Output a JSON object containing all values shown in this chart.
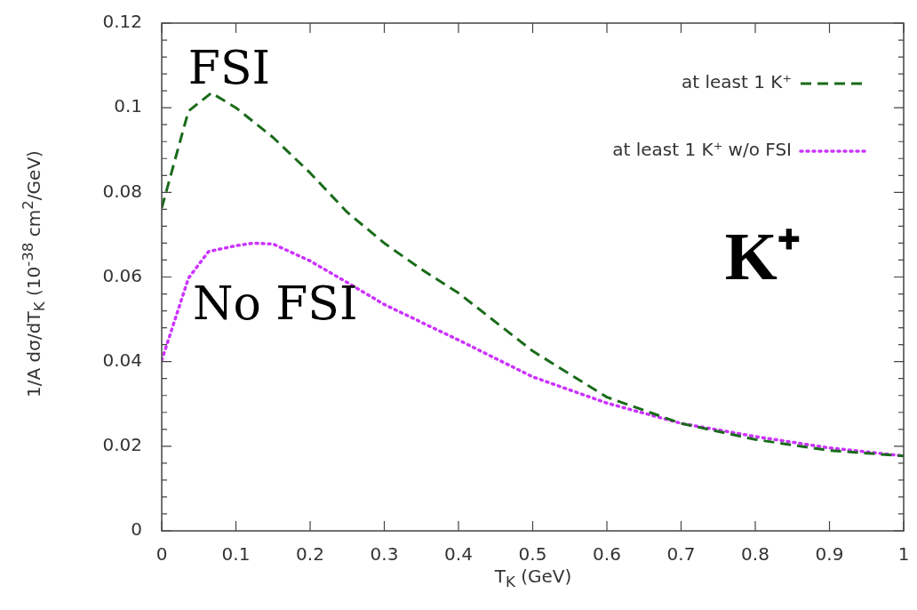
{
  "chart_data": {
    "type": "line",
    "xlabel": "T$_{K}$ (GeV)",
    "ylabel": "1/A dσ/dT$_{K}$ (10$^{-38}$ cm$^{2}$/GeV)",
    "x": [
      0,
      0.036,
      0.067,
      0.1,
      0.15,
      0.2,
      0.25,
      0.3,
      0.35,
      0.4,
      0.5,
      0.6,
      0.7,
      0.8,
      0.9,
      1.0
    ],
    "series": [
      {
        "name": "at least 1 K⁺",
        "color": "#1a6b1a",
        "line_style": "dashed",
        "values": [
          0.0763,
          0.0992,
          0.1035,
          0.1,
          0.093,
          0.0846,
          0.0753,
          0.068,
          0.0618,
          0.0562,
          0.0425,
          0.0316,
          0.0254,
          0.0216,
          0.019,
          0.0177
        ]
      },
      {
        "name": "at least 1 K⁺ w/o FSI",
        "color": "#cc33ff",
        "line_style": "dotted",
        "x": [
          0,
          0.036,
          0.063,
          0.1,
          0.123,
          0.15,
          0.2,
          0.25,
          0.3,
          0.4,
          0.5,
          0.6,
          0.7,
          0.8,
          0.9,
          1.0
        ],
        "values": [
          0.0403,
          0.0597,
          0.066,
          0.0674,
          0.068,
          0.0678,
          0.0638,
          0.0587,
          0.0535,
          0.0451,
          0.0364,
          0.0302,
          0.0254,
          0.0223,
          0.0196,
          0.0177
        ]
      }
    ],
    "xlim": [
      0,
      1
    ],
    "xticks": [
      {
        "value": 0,
        "label": "0"
      },
      0.1,
      0.2,
      0.3,
      0.4,
      0.5,
      0.6,
      0.7,
      0.8,
      0.9,
      {
        "value": 1,
        "label": "1"
      }
    ],
    "ylim": [
      0,
      0.12
    ],
    "yticks": [
      0,
      {
        "value": 0.004,
        "label": null
      },
      {
        "value": 0.008,
        "label": null
      },
      {
        "value": 0.012,
        "label": null
      },
      {
        "value": 0.016,
        "label": null
      },
      0.02,
      {
        "value": 0.024,
        "label": null
      },
      {
        "value": 0.028,
        "label": null
      },
      {
        "value": 0.032,
        "label": null
      },
      {
        "value": 0.036,
        "label": null
      },
      0.04,
      {
        "value": 0.044,
        "label": null
      },
      {
        "value": 0.048,
        "label": null
      },
      {
        "value": 0.052,
        "label": null
      },
      {
        "value": 0.056,
        "label": null
      },
      0.06,
      {
        "value": 0.064,
        "label": null
      },
      {
        "value": 0.068,
        "label": null
      },
      {
        "value": 0.072,
        "label": null
      },
      {
        "value": 0.076,
        "label": null
      },
      0.08,
      {
        "value": 0.084,
        "label": null
      },
      {
        "value": 0.088,
        "label": null
      },
      {
        "value": 0.092,
        "label": null
      },
      {
        "value": 0.096,
        "label": null
      },
      0.1,
      {
        "value": 0.104,
        "label": null
      },
      {
        "value": 0.108,
        "label": null
      },
      {
        "value": 0.112,
        "label": null
      },
      {
        "value": 0.116,
        "label": null
      },
      0.12
    ],
    "annotations": [
      "FSI",
      "No FSI",
      "K⁺"
    ],
    "legend": "top right",
    "grid": false,
    "marker": "none"
  }
}
